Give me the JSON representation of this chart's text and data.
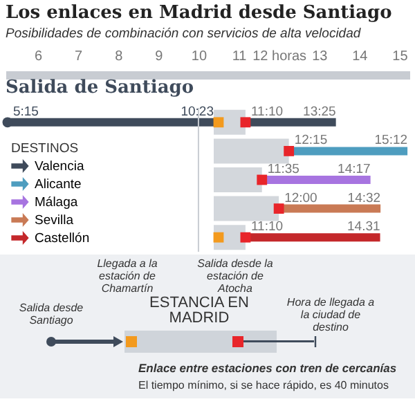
{
  "chart_data": {
    "type": "bar",
    "orientation": "horizontal",
    "title": "Los enlaces en Madrid desde Santiago",
    "subtitle": "Posibilidades de combinación con servicios de alta velocidad",
    "legend_title": "DESTINOS",
    "legend": "bottom left",
    "grid": false,
    "tick_labels": "x",
    "categories": [
      null,
      null,
      null,
      null,
      null
    ],
    "xlim": [
      5.2,
      15.25
    ],
    "xticks": [
      6,
      7,
      8,
      9,
      10,
      11,
      {
        "value": 12,
        "label": "12 horas"
      },
      13,
      14,
      15
    ],
    "ref_lines": [
      {
        "axis": "x",
        "value": 10,
        "color": "#c8ccd2"
      }
    ],
    "series": [
      {
        "color": "#3f4b5b",
        "base": [
          5.25,
          null,
          null,
          null,
          null
        ],
        "values": [
          5.13,
          null,
          null,
          null,
          null
        ]
      },
      {
        "color": "#d3d7dc",
        "base": [
          10.38,
          10.38,
          10.38,
          10.38,
          10.38
        ],
        "values": [
          0.79,
          1.87,
          1.2,
          1.62,
          0.79
        ]
      },
      {
        "name": "Valencia",
        "color": "#3f4b5b",
        "base": [
          11.17,
          null,
          null,
          null,
          null
        ],
        "values": [
          2.25,
          null,
          null,
          null,
          null
        ]
      },
      {
        "name": "Alicante",
        "color": "#4e9dbf",
        "base": [
          null,
          12.25,
          null,
          null,
          null
        ],
        "values": [
          null,
          2.95,
          null,
          null,
          null
        ]
      },
      {
        "name": "Málaga",
        "color": "#a774e0",
        "base": [
          null,
          null,
          11.58,
          null,
          null
        ],
        "values": [
          null,
          null,
          2.7,
          null,
          null
        ]
      },
      {
        "name": "Sevilla",
        "color": "#c97a55",
        "base": [
          null,
          null,
          null,
          12,
          null
        ],
        "values": [
          null,
          null,
          null,
          2.53,
          null
        ]
      },
      {
        "name": "Castellón",
        "color": "#c4282b",
        "base": [
          null,
          null,
          null,
          null,
          11.17
        ],
        "values": [
          null,
          null,
          null,
          null,
          3.35
        ]
      },
      {
        "type": "scatter",
        "marker": "square",
        "color": "#f39a1e",
        "values": [
          10.5,
          null,
          null,
          null,
          10.5
        ]
      },
      {
        "type": "scatter",
        "marker": "square",
        "color": "#e8252a",
        "values": [
          11.17,
          12.25,
          11.58,
          12,
          11.17
        ]
      },
      {
        "type": "scatter",
        "marker": "circle",
        "color": "#3f4b5b",
        "values": [
          5.25,
          null,
          null,
          null,
          null
        ]
      }
    ],
    "annotations": [
      "Salida de Santiago",
      "Llegada a la estación de Chamartín",
      "Salida desde la estación de Atocha",
      "Salida desde Santiago",
      "Hora de llegada a la ciudad de destino",
      "ESTANCIA EN MADRID",
      "Enlace entre estaciones con tren de cercanías",
      "El tiempo mínimo, si se hace rápido, es 40 minutos",
      {
        "text": "5:15",
        "x": 5.25
      },
      {
        "text": "10:23",
        "x": 10.38
      },
      {
        "text": "11:10",
        "x": 11.17
      },
      {
        "text": "13:25",
        "x": 13.42
      },
      {
        "text": "12:15",
        "x": 12.25
      },
      {
        "text": "15:12",
        "x": 15.2
      },
      {
        "text": "11:35",
        "x": 11.58
      },
      {
        "text": "14:17",
        "x": 14.28
      },
      {
        "text": "12:00",
        "x": 12
      },
      {
        "text": "14:32",
        "x": 14.53
      },
      {
        "text": "11:10",
        "x": 11.17
      },
      {
        "text": "14.31",
        "x": 14.52
      }
    ]
  }
}
